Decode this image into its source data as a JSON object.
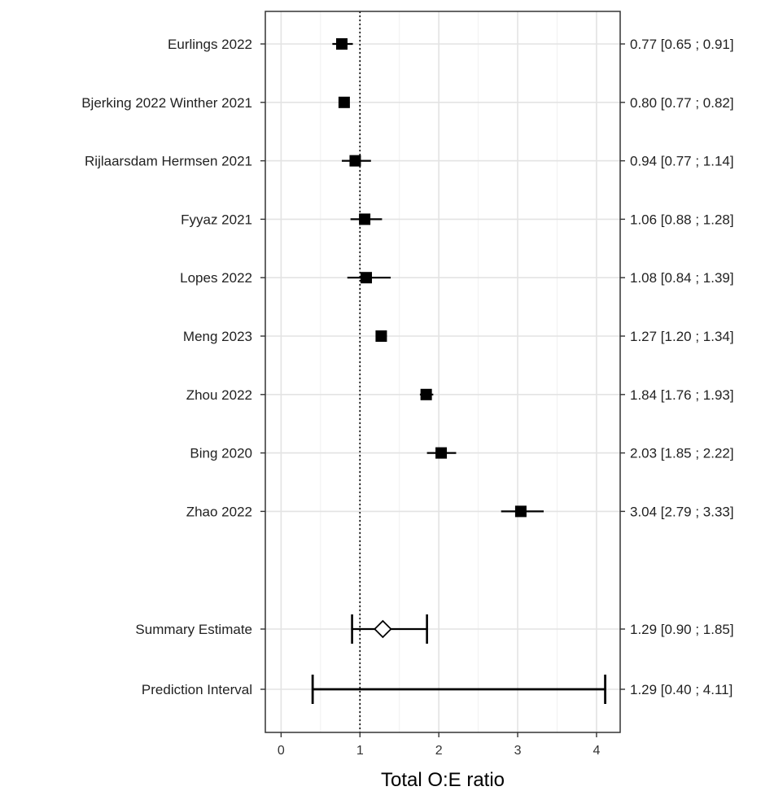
{
  "chart_data": {
    "type": "forest",
    "xlabel": "Total O:E ratio",
    "xlim": [
      -0.2,
      4.3
    ],
    "xticks": [
      0,
      1,
      2,
      3,
      4
    ],
    "reference_line": 1,
    "grid": true,
    "studies": [
      {
        "label": "Eurlings 2022",
        "estimate": 0.77,
        "lower": 0.65,
        "upper": 0.91,
        "ci_text": "0.77 [0.65 ; 0.91]"
      },
      {
        "label": "Bjerking 2022 Winther 2021",
        "estimate": 0.8,
        "lower": 0.77,
        "upper": 0.82,
        "ci_text": "0.80 [0.77 ; 0.82]"
      },
      {
        "label": "Rijlaarsdam Hermsen 2021",
        "estimate": 0.94,
        "lower": 0.77,
        "upper": 1.14,
        "ci_text": "0.94 [0.77 ; 1.14]"
      },
      {
        "label": "Fyyaz 2021",
        "estimate": 1.06,
        "lower": 0.88,
        "upper": 1.28,
        "ci_text": "1.06 [0.88 ; 1.28]"
      },
      {
        "label": "Lopes 2022",
        "estimate": 1.08,
        "lower": 0.84,
        "upper": 1.39,
        "ci_text": "1.08 [0.84 ; 1.39]"
      },
      {
        "label": "Meng 2023",
        "estimate": 1.27,
        "lower": 1.2,
        "upper": 1.34,
        "ci_text": "1.27 [1.20 ; 1.34]"
      },
      {
        "label": "Zhou 2022",
        "estimate": 1.84,
        "lower": 1.76,
        "upper": 1.93,
        "ci_text": "1.84 [1.76 ; 1.93]"
      },
      {
        "label": "Bing 2020",
        "estimate": 2.03,
        "lower": 1.85,
        "upper": 2.22,
        "ci_text": "2.03 [1.85 ; 2.22]"
      },
      {
        "label": "Zhao 2022",
        "estimate": 3.04,
        "lower": 2.79,
        "upper": 3.33,
        "ci_text": "3.04 [2.79 ; 3.33]"
      }
    ],
    "summary": {
      "label": "Summary Estimate",
      "estimate": 1.29,
      "lower": 0.9,
      "upper": 1.85,
      "ci_text": "1.29 [0.90 ; 1.85]"
    },
    "prediction_interval": {
      "label": "Prediction Interval",
      "estimate": 1.29,
      "lower": 0.4,
      "upper": 4.11,
      "ci_text": "1.29 [0.40 ; 4.11]"
    }
  }
}
